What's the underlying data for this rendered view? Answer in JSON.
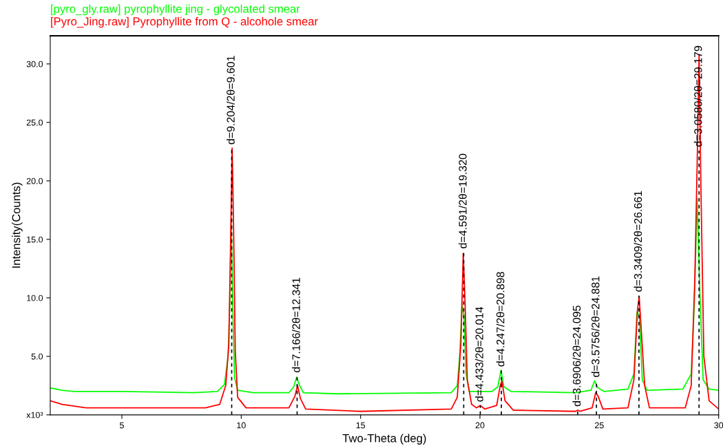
{
  "chart_data": {
    "type": "line",
    "xlabel": "Two-Theta (deg)",
    "ylabel": "Intensity(Counts)",
    "xlim": [
      2,
      30
    ],
    "xticks": [
      5,
      10,
      15,
      20,
      25,
      30
    ],
    "ylim": [
      0,
      32.4
    ],
    "yticks": [
      {
        "value": 0,
        "label": "x10³"
      },
      {
        "value": 5,
        "label": "5.0"
      },
      {
        "value": 10,
        "label": "10.0"
      },
      {
        "value": 15,
        "label": "15.0"
      },
      {
        "value": 20,
        "label": "20.0"
      },
      {
        "value": 25,
        "label": "25.0"
      },
      {
        "value": 30,
        "label": "30.0"
      }
    ],
    "grid": false,
    "legend": "top left",
    "marker": "none",
    "line_style": "solid",
    "series": [
      {
        "name": "[pyro_gly.raw] pyrophyllite jing - glycolated smear",
        "color": "#00ff00",
        "x": [
          2.0,
          2.5,
          3.0,
          5.0,
          8.0,
          9.0,
          9.3,
          9.45,
          9.52,
          9.58,
          9.65,
          9.72,
          9.85,
          10.5,
          12.0,
          12.2,
          12.32,
          12.45,
          12.6,
          14,
          18.8,
          19.05,
          19.15,
          19.25,
          19.33,
          19.42,
          19.55,
          20.5,
          20.75,
          20.88,
          21.0,
          21.3,
          24.0,
          24.65,
          24.8,
          24.95,
          25.2,
          26.2,
          26.45,
          26.58,
          26.68,
          26.8,
          27.0,
          28.5,
          28.85,
          28.98,
          29.1,
          29.22,
          29.35,
          29.6,
          30.0
        ],
        "values": [
          2.3,
          2.1,
          2.0,
          2.0,
          1.9,
          2.0,
          2.6,
          5.0,
          9.5,
          16.8,
          9.0,
          3.2,
          2.1,
          1.9,
          1.9,
          2.4,
          3.2,
          2.5,
          1.9,
          1.8,
          1.9,
          2.5,
          5.0,
          9.4,
          8.5,
          3.5,
          2.0,
          2.0,
          2.4,
          3.8,
          2.4,
          2.0,
          1.9,
          2.1,
          2.9,
          2.3,
          2.0,
          2.2,
          3.5,
          8.8,
          8.5,
          3.0,
          2.1,
          2.2,
          3.5,
          9.5,
          18.5,
          10.0,
          3.0,
          2.2,
          2.1
        ]
      },
      {
        "name": "[Pyro_Jing.raw] Pyrophyllite from Q - alcohole smear",
        "color": "#ff0000",
        "x": [
          2.0,
          2.5,
          3.5,
          6,
          8.5,
          9.1,
          9.35,
          9.48,
          9.55,
          9.62,
          9.68,
          9.75,
          9.85,
          10.2,
          12.0,
          12.25,
          12.36,
          12.48,
          12.7,
          15,
          18.8,
          19.05,
          19.2,
          19.3,
          19.37,
          19.47,
          19.65,
          19.85,
          20.014,
          20.2,
          20.7,
          20.85,
          20.92,
          21.05,
          21.4,
          24.0,
          24.095,
          24.2,
          24.7,
          24.85,
          24.95,
          25.15,
          26.2,
          26.45,
          26.6,
          26.67,
          26.75,
          26.9,
          27.1,
          28.6,
          28.85,
          29.0,
          29.1,
          29.18,
          29.26,
          29.38,
          29.6,
          30.0
        ],
        "values": [
          1.2,
          0.9,
          0.6,
          0.6,
          0.6,
          0.9,
          2.5,
          6.0,
          14,
          22.8,
          16,
          5.5,
          1.5,
          0.6,
          0.6,
          1.6,
          2.5,
          1.4,
          0.5,
          0.3,
          0.5,
          1.5,
          6,
          13.8,
          10,
          3.0,
          0.9,
          0.6,
          0.8,
          0.5,
          0.8,
          2.5,
          2.9,
          1.2,
          0.4,
          0.3,
          0.4,
          0.3,
          0.6,
          1.9,
          1.6,
          0.5,
          0.6,
          3.0,
          9.0,
          10.1,
          7.5,
          2.5,
          0.6,
          0.6,
          2.5,
          11.5,
          21.5,
          30.8,
          19,
          5,
          1.2,
          0.5
        ]
      }
    ],
    "annotations": [
      {
        "text": "d=9.204/2θ=9.601",
        "x": 9.601,
        "y": 22.8
      },
      {
        "text": "d=7.166/2θ=12.341",
        "x": 12.341,
        "y": 3.3
      },
      {
        "text": "d=4.591/2θ=19.320",
        "x": 19.32,
        "y": 13.9
      },
      {
        "text": "d=4.433/2θ=20.014",
        "x": 20.014,
        "y": 0.8
      },
      {
        "text": "d=4.247/2θ=20.898",
        "x": 20.898,
        "y": 3.8
      },
      {
        "text": "d=3.6906/2θ=24.095",
        "x": 24.095,
        "y": 0.4
      },
      {
        "text": "d=3.5756/2θ=24.881",
        "x": 24.881,
        "y": 2.9
      },
      {
        "text": "d=3.3409/2θ=26.661",
        "x": 26.661,
        "y": 10.2
      },
      {
        "text": "d=3.0580/2θ=29.179",
        "x": 29.179,
        "y": 22.6
      }
    ]
  }
}
